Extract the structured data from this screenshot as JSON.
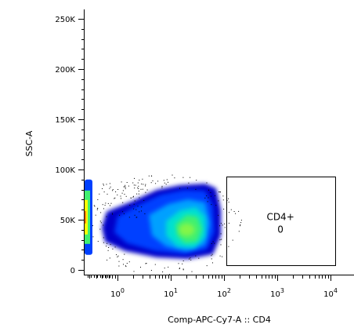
{
  "chart_data": {
    "type": "scatter",
    "plot_style": "pseudocolor density",
    "xlabel": "Comp-APC-Cy7-A :: CD4",
    "ylabel": "SSC-A",
    "x_scale": "biexponential (log)",
    "y_scale": "linear",
    "xlim": [
      -1,
      12000
    ],
    "ylim": [
      -5000,
      262144
    ],
    "x_ticks": [
      {
        "value": 1,
        "base": "10",
        "exp": "0"
      },
      {
        "value": 10,
        "base": "10",
        "exp": "1"
      },
      {
        "value": 100,
        "base": "10",
        "exp": "2"
      },
      {
        "value": 1000,
        "base": "10",
        "exp": "3"
      },
      {
        "value": 10000,
        "base": "10",
        "exp": "4"
      }
    ],
    "y_ticks": [
      {
        "value": 0,
        "label": "0"
      },
      {
        "value": 50000,
        "label": "50K"
      },
      {
        "value": 100000,
        "label": "100K"
      },
      {
        "value": 150000,
        "label": "150K"
      },
      {
        "value": 200000,
        "label": "200K"
      },
      {
        "value": 250000,
        "label": "250K"
      }
    ],
    "populations": [
      {
        "shape": "main cluster",
        "x_range": [
          0.4,
          100
        ],
        "y_range": [
          25000,
          90000
        ],
        "peak": [
          20,
          40000
        ]
      },
      {
        "shape": "edge-piled events",
        "x_range": [
          0.3,
          0.4
        ],
        "y_range": [
          15000,
          90000
        ],
        "peak": [
          0.35,
          50000
        ]
      }
    ],
    "gate": {
      "name": "CD4+",
      "count": "0",
      "x_range": [
        110,
        12000
      ],
      "y_range": [
        5000,
        93000
      ]
    },
    "density_colors": [
      "#0000c8",
      "#0040ff",
      "#00a0ff",
      "#00e0d0",
      "#40f070",
      "#ffff00",
      "#ff8000"
    ]
  }
}
